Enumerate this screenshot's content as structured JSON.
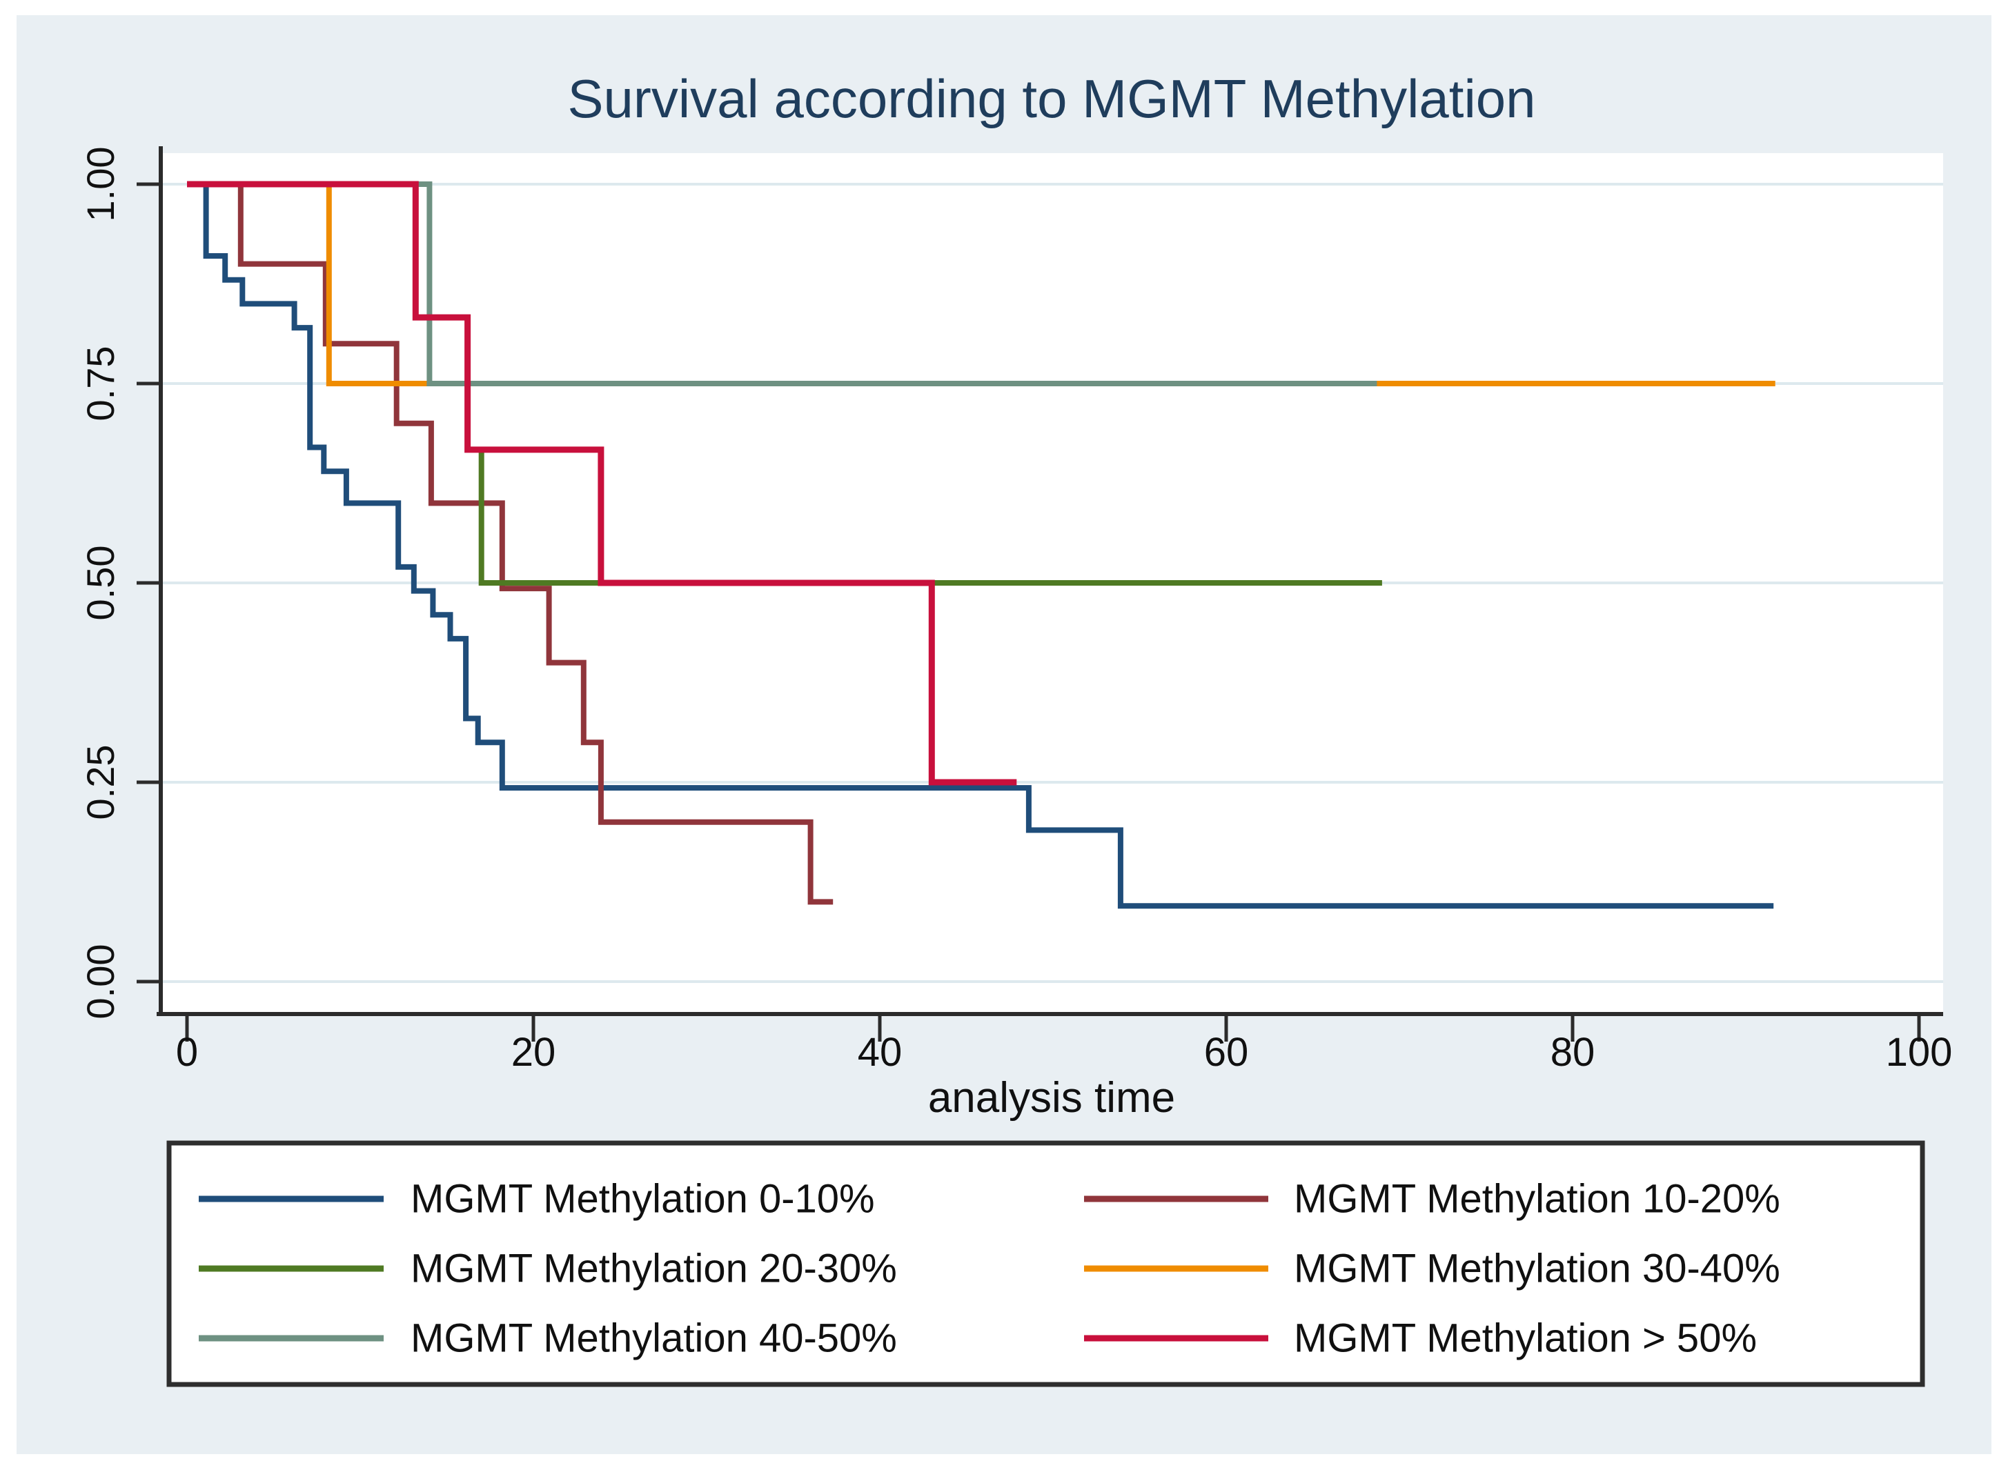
{
  "figure": {
    "background_color": "#e9eff3",
    "margin_color": "#ffffff",
    "plot_background": "#ffffff",
    "grid_color": "#dde9ee",
    "axis_color": "#2b2b2b",
    "tick_label_color": "#101010",
    "title_color": "#1f3d5c",
    "legend_border_color": "#2e2e2e",
    "legend_background": "#ffffff"
  },
  "chart_data": {
    "type": "line",
    "subtype": "kaplan_meier_step",
    "title": "Survival according to MGMT Methylation",
    "xlabel": "analysis time",
    "ylabel": "",
    "xlim": [
      0,
      100
    ],
    "ylim": [
      0.0,
      1.0
    ],
    "xticks": [
      0,
      20,
      40,
      60,
      80,
      100
    ],
    "yticks": [
      {
        "value": 0.0,
        "label": "0.00"
      },
      {
        "value": 0.25,
        "label": "0.25"
      },
      {
        "value": 0.5,
        "label": "0.50"
      },
      {
        "value": 0.75,
        "label": "0.75"
      },
      {
        "value": 1.0,
        "label": "1.00"
      }
    ],
    "grid": true,
    "legend_position": "bottom",
    "series": [
      {
        "name": "MGMT Methylation 0-10%",
        "color": "#1f4d7a",
        "start": [
          0,
          1.0
        ],
        "steps": [
          [
            1.1,
            0.91
          ],
          [
            2.2,
            0.88
          ],
          [
            3.2,
            0.85
          ],
          [
            6.2,
            0.82
          ],
          [
            7.1,
            0.67
          ],
          [
            7.9,
            0.64
          ],
          [
            9.2,
            0.6
          ],
          [
            12.2,
            0.52
          ],
          [
            13.1,
            0.49
          ],
          [
            14.2,
            0.46
          ],
          [
            15.2,
            0.43
          ],
          [
            16.1,
            0.33
          ],
          [
            16.8,
            0.3
          ],
          [
            18.2,
            0.243
          ],
          [
            48.6,
            0.19
          ],
          [
            53.9,
            0.095
          ]
        ],
        "end_time": 91.6
      },
      {
        "name": "MGMT Methylation 10-20%",
        "color": "#90353b",
        "start": [
          0,
          1.0
        ],
        "steps": [
          [
            3.1,
            0.9
          ],
          [
            8.0,
            0.8
          ],
          [
            12.1,
            0.7
          ],
          [
            14.1,
            0.6
          ],
          [
            18.2,
            0.493
          ],
          [
            20.9,
            0.4
          ],
          [
            22.9,
            0.3
          ],
          [
            23.9,
            0.2
          ],
          [
            36.0,
            0.1
          ]
        ],
        "end_time": 37.3
      },
      {
        "name": "MGMT Methylation 20-30%",
        "color": "#4f7a23",
        "start": [
          16.2,
          0.667
        ],
        "steps": [
          [
            17.0,
            0.5
          ]
        ],
        "end_time": 69.0
      },
      {
        "name": "MGMT Methylation 30-40%",
        "color": "#ef8c00",
        "start": [
          0,
          1.0
        ],
        "steps": [
          [
            8.2,
            0.75
          ]
        ],
        "end_time": 91.7
      },
      {
        "name": "MGMT Methylation 40-50%",
        "color": "#6e9182",
        "start": [
          0,
          1.0
        ],
        "steps": [
          [
            14.0,
            0.75
          ]
        ],
        "end_time": 68.7
      },
      {
        "name": "MGMT Methylation > 50%",
        "color": "#c8103c",
        "start": [
          0,
          1.0
        ],
        "steps": [
          [
            13.2,
            0.833
          ],
          [
            16.2,
            0.667
          ],
          [
            23.9,
            0.5
          ],
          [
            43.0,
            0.25
          ]
        ],
        "end_time": 47.9
      }
    ]
  },
  "legend": {
    "columns": 2,
    "items": [
      {
        "label": "MGMT Methylation 0-10%",
        "color": "#1f4d7a"
      },
      {
        "label": "MGMT Methylation 10-20%",
        "color": "#90353b"
      },
      {
        "label": "MGMT Methylation 20-30%",
        "color": "#4f7a23"
      },
      {
        "label": "MGMT Methylation 30-40%",
        "color": "#ef8c00"
      },
      {
        "label": "MGMT Methylation 40-50%",
        "color": "#6e9182"
      },
      {
        "label": "MGMT Methylation > 50%",
        "color": "#c8103c"
      }
    ]
  }
}
